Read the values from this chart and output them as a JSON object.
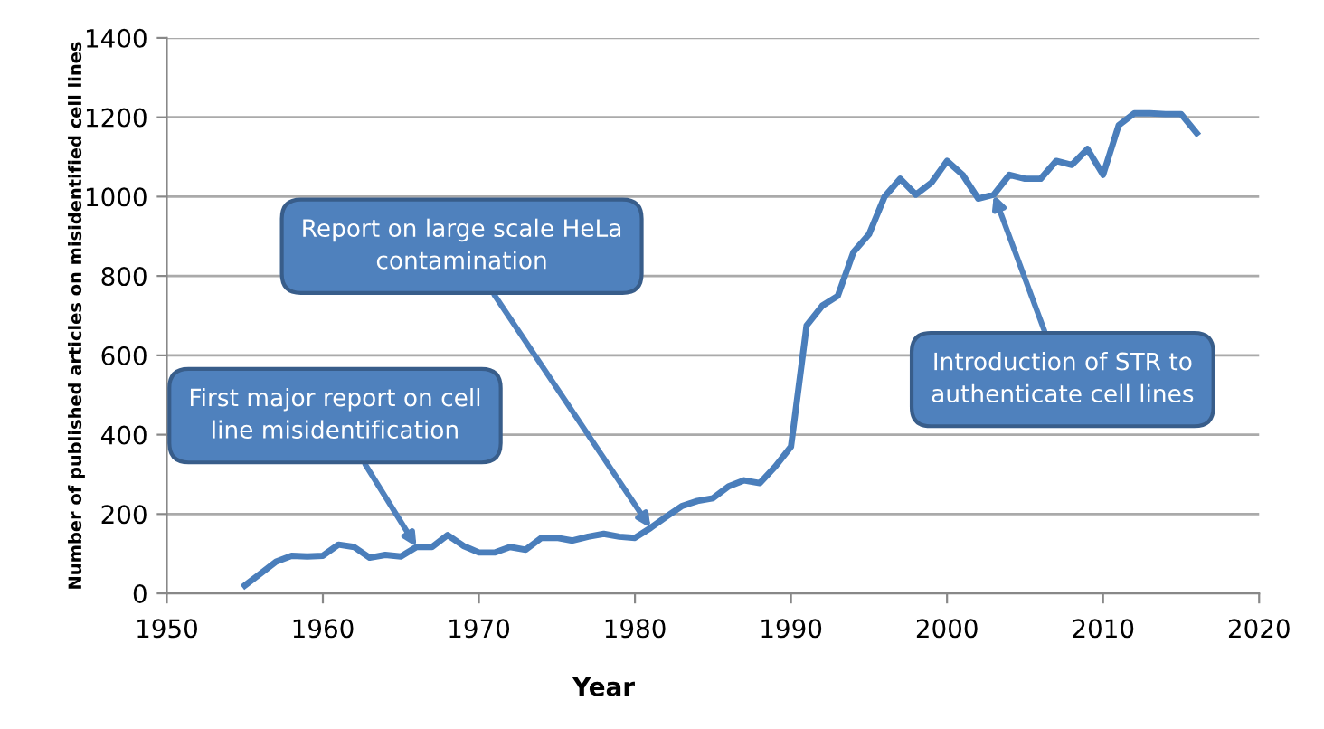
{
  "chart_data": {
    "type": "line",
    "xlabel": "Year",
    "ylabel": "Number of published articles on misidentified cell lines",
    "x": [
      1955,
      1956,
      1957,
      1958,
      1959,
      1960,
      1961,
      1962,
      1963,
      1964,
      1965,
      1966,
      1967,
      1968,
      1969,
      1970,
      1971,
      1972,
      1973,
      1974,
      1975,
      1976,
      1977,
      1978,
      1979,
      1980,
      1981,
      1982,
      1983,
      1984,
      1985,
      1986,
      1987,
      1988,
      1989,
      1990,
      1991,
      1992,
      1993,
      1994,
      1995,
      1996,
      1997,
      1998,
      1999,
      2000,
      2001,
      2002,
      2003,
      2004,
      2005,
      2006,
      2007,
      2008,
      2009,
      2010,
      2011,
      2012,
      2013,
      2014,
      2015,
      2016
    ],
    "series": [
      {
        "color": "#4a7ebb",
        "values": [
          20,
          50,
          80,
          95,
          93,
          95,
          123,
          117,
          90,
          97,
          93,
          117,
          117,
          147,
          120,
          103,
          103,
          117,
          110,
          140,
          140,
          133,
          143,
          150,
          143,
          140,
          165,
          193,
          220,
          233,
          240,
          270,
          285,
          278,
          320,
          370,
          675,
          725,
          750,
          860,
          905,
          1000,
          1045,
          1005,
          1035,
          1090,
          1055,
          995,
          1005,
          1055,
          1045,
          1045,
          1090,
          1080,
          1120,
          1055,
          1180,
          1210,
          1210,
          1208,
          1208,
          1160
        ]
      }
    ],
    "xlim": [
      1950,
      2020
    ],
    "xticks": [
      1950,
      1960,
      1970,
      1980,
      1990,
      2000,
      2010,
      2020
    ],
    "ylim": [
      0,
      1400
    ],
    "yticks": [
      0,
      200,
      400,
      600,
      800,
      1000,
      1200,
      1400
    ],
    "grid": "y",
    "marker": "none",
    "line_style": "solid",
    "annotations": [
      {
        "text": "First major report on cell\nline misidentification",
        "x": 1966,
        "y": 117
      },
      {
        "text": "Report on large scale HeLa\ncontamination",
        "x": 1981,
        "y": 165
      },
      {
        "text": "Introduction of STR to\nauthenticate cell lines",
        "x": 2003,
        "y": 1005
      }
    ]
  }
}
